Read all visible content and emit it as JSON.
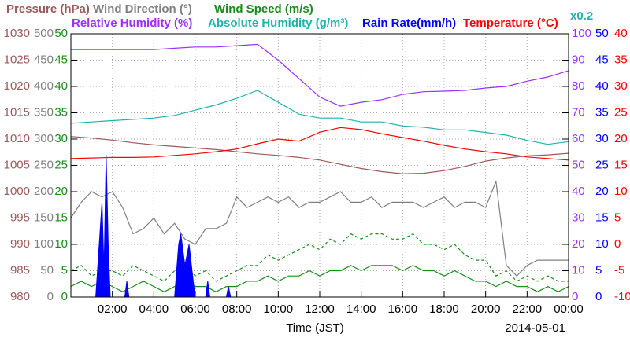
{
  "chart_data": {
    "type": "line",
    "x_label": "Time (JST)",
    "date_label": "2014-05-01",
    "xlim": [
      0,
      24
    ],
    "xticks": [
      {
        "value": 2,
        "label": "02:00"
      },
      {
        "value": 4,
        "label": "04:00"
      },
      {
        "value": 6,
        "label": "06:00"
      },
      {
        "value": 8,
        "label": "08:00"
      },
      {
        "value": 10,
        "label": "10:00"
      },
      {
        "value": 12,
        "label": "12:00"
      },
      {
        "value": 14,
        "label": "14:00"
      },
      {
        "value": 16,
        "label": "16:00"
      },
      {
        "value": 18,
        "label": "18:00"
      },
      {
        "value": 20,
        "label": "20:00"
      },
      {
        "value": 22,
        "label": "22:00"
      },
      {
        "value": 24,
        "label": "00:00"
      }
    ],
    "grid": true,
    "axes": [
      {
        "side": "left",
        "color": "#9c5a5a",
        "lim": [
          980,
          1030
        ],
        "ticks": [
          980,
          985,
          990,
          995,
          1000,
          1005,
          1010,
          1015,
          1020,
          1025,
          1030
        ]
      },
      {
        "side": "left",
        "color": "#808080",
        "lim": [
          0,
          500
        ],
        "ticks": [
          0,
          50,
          100,
          150,
          200,
          250,
          300,
          350,
          400,
          450,
          500
        ]
      },
      {
        "side": "left",
        "color": "#1a8c1a",
        "lim": [
          0,
          50
        ],
        "ticks": [
          0,
          5,
          10,
          15,
          20,
          25,
          30,
          35,
          40,
          45,
          50
        ]
      },
      {
        "side": "right",
        "color": "#9b30ff",
        "lim": [
          0,
          100
        ],
        "ticks": [
          0,
          10,
          20,
          30,
          40,
          50,
          60,
          70,
          80,
          90,
          100
        ]
      },
      {
        "side": "right",
        "color": "#0000ff",
        "lim": [
          0,
          50
        ],
        "ticks": [
          0,
          5,
          10,
          15,
          20,
          25,
          30,
          35,
          40,
          45,
          50
        ]
      },
      {
        "side": "right",
        "color": "#ff0000",
        "lim": [
          -10,
          40
        ],
        "ticks": [
          -10,
          -5,
          0,
          5,
          10,
          15,
          20,
          25,
          30,
          35,
          40
        ]
      },
      {
        "side": "none",
        "color": "#20b2aa",
        "lim": [
          0,
          20
        ],
        "scale_label": "x0.2"
      }
    ],
    "x": [
      0,
      1,
      2,
      3,
      4,
      5,
      6,
      7,
      8,
      9,
      10,
      11,
      12,
      13,
      14,
      15,
      16,
      17,
      18,
      19,
      20,
      21,
      22,
      23,
      24
    ],
    "series": [
      {
        "name": "Pressure (hPa)",
        "color": "#9c5a5a",
        "axis": 0,
        "values": [
          1010.5,
          1010.2,
          1009.8,
          1009.3,
          1008.9,
          1008.6,
          1008.3,
          1008.0,
          1007.6,
          1007.2,
          1006.9,
          1006.5,
          1006.0,
          1005.2,
          1004.4,
          1003.8,
          1003.4,
          1003.5,
          1004.0,
          1004.8,
          1005.8,
          1006.4,
          1006.8,
          1007.0,
          1007.3
        ]
      },
      {
        "name": "Wind Direction (°)",
        "color": "#808080",
        "axis": 1,
        "x": [
          0,
          0.5,
          1,
          1.5,
          2,
          2.5,
          3,
          3.5,
          4,
          4.5,
          5,
          5.5,
          6,
          6.5,
          7,
          7.5,
          8,
          8.5,
          9,
          9.5,
          10,
          10.5,
          11,
          11.5,
          12,
          12.5,
          13,
          13.5,
          14,
          14.5,
          15,
          15.5,
          16,
          16.5,
          17,
          17.5,
          18,
          18.5,
          19,
          19.5,
          20,
          20.5,
          21,
          21.5,
          22,
          22.5,
          23,
          23.5,
          24
        ],
        "values": [
          150,
          180,
          200,
          190,
          200,
          170,
          120,
          130,
          150,
          120,
          140,
          110,
          100,
          130,
          130,
          140,
          190,
          170,
          180,
          190,
          180,
          190,
          170,
          180,
          180,
          190,
          200,
          180,
          180,
          190,
          170,
          180,
          180,
          180,
          170,
          180,
          190,
          170,
          180,
          180,
          170,
          220,
          60,
          40,
          60,
          70,
          70,
          70,
          70
        ]
      },
      {
        "name": "Wind Speed (m/s)",
        "color": "#1a8c1a",
        "axis": 2,
        "x": [
          0,
          0.5,
          1,
          1.5,
          2,
          2.5,
          3,
          3.5,
          4,
          4.5,
          5,
          5.5,
          6,
          6.5,
          7,
          7.5,
          8,
          8.5,
          9,
          9.5,
          10,
          10.5,
          11,
          11.5,
          12,
          12.5,
          13,
          13.5,
          14,
          14.5,
          15,
          15.5,
          16,
          16.5,
          17,
          17.5,
          18,
          18.5,
          19,
          19.5,
          20,
          20.5,
          21,
          21.5,
          22,
          22.5,
          23,
          23.5,
          24
        ],
        "values": [
          2,
          3,
          2,
          3,
          2,
          1,
          2,
          3,
          2,
          1,
          2,
          3,
          2,
          2,
          1,
          2,
          2,
          3,
          3,
          4,
          3,
          4,
          4,
          5,
          4,
          5,
          5,
          6,
          5,
          6,
          6,
          6,
          5,
          6,
          5,
          5,
          4,
          5,
          4,
          3,
          3,
          2,
          3,
          2,
          2,
          1,
          2,
          1,
          2
        ]
      },
      {
        "color": "#1a8c1a",
        "axis": 2,
        "dashed": true,
        "x": [
          0,
          0.5,
          1,
          1.5,
          2,
          2.5,
          3,
          3.5,
          4,
          4.5,
          5,
          5.5,
          6,
          6.5,
          7,
          7.5,
          8,
          8.5,
          9,
          9.5,
          10,
          10.5,
          11,
          11.5,
          12,
          12.5,
          13,
          13.5,
          14,
          14.5,
          15,
          15.5,
          16,
          16.5,
          17,
          17.5,
          18,
          18.5,
          19,
          19.5,
          20,
          20.5,
          21,
          21.5,
          22,
          22.5,
          23,
          23.5,
          24
        ],
        "values": [
          5,
          6,
          4,
          5,
          5,
          4,
          6,
          5,
          4,
          3,
          5,
          6,
          4,
          5,
          3,
          4,
          5,
          6,
          6,
          8,
          7,
          8,
          9,
          10,
          9,
          11,
          10,
          12,
          11,
          12,
          12,
          11,
          11,
          12,
          10,
          10,
          9,
          10,
          8,
          7,
          7,
          4,
          5,
          3,
          4,
          3,
          4,
          3,
          3
        ]
      },
      {
        "name": "Relative Humidity (%)",
        "color": "#9b30ff",
        "axis": 3,
        "values": [
          94,
          94,
          94,
          94,
          94,
          94.5,
          95,
          95,
          95.5,
          96,
          90,
          83,
          76,
          72.5,
          74,
          75,
          77,
          78,
          78.2,
          78.5,
          79.4,
          80,
          82,
          83.6,
          86
        ]
      },
      {
        "name": "Absolute Humidity (g/m³)",
        "color": "#20b2aa",
        "axis": 6,
        "values": [
          13.2,
          13.3,
          13.4,
          13.5,
          13.6,
          13.8,
          14.2,
          14.6,
          15.1,
          15.7,
          14.8,
          13.9,
          13.6,
          13.6,
          13.3,
          13.3,
          13.0,
          12.9,
          12.7,
          12.7,
          12.5,
          12.3,
          11.9,
          11.6,
          11.8
        ]
      },
      {
        "name": "Rain Rate(mm/h)",
        "color": "#0000ff",
        "axis": 4,
        "area": true,
        "x": [
          0,
          1.2,
          1.4,
          1.5,
          1.6,
          1.7,
          1.8,
          1.9,
          2.6,
          2.7,
          2.8,
          5.0,
          5.2,
          5.3,
          5.5,
          5.7,
          5.9,
          6.0,
          6.5,
          6.6,
          6.7,
          7.5,
          7.6,
          7.7,
          24
        ],
        "values": [
          0,
          0,
          12,
          18,
          5,
          27,
          10,
          0,
          0,
          3,
          0,
          0,
          10,
          12,
          6,
          10,
          3,
          0,
          0,
          3,
          0,
          0,
          2,
          0,
          0
        ]
      },
      {
        "name": "Temperature (°C)",
        "color": "#ff0000",
        "axis": 5,
        "values": [
          16.3,
          16.4,
          16.5,
          16.5,
          16.6,
          16.9,
          17.2,
          17.6,
          18.1,
          19.1,
          20.0,
          19.6,
          21.3,
          22.2,
          21.8,
          21.0,
          20.3,
          19.6,
          18.8,
          18.1,
          17.6,
          17.2,
          16.6,
          16.3,
          16.0
        ]
      }
    ]
  }
}
